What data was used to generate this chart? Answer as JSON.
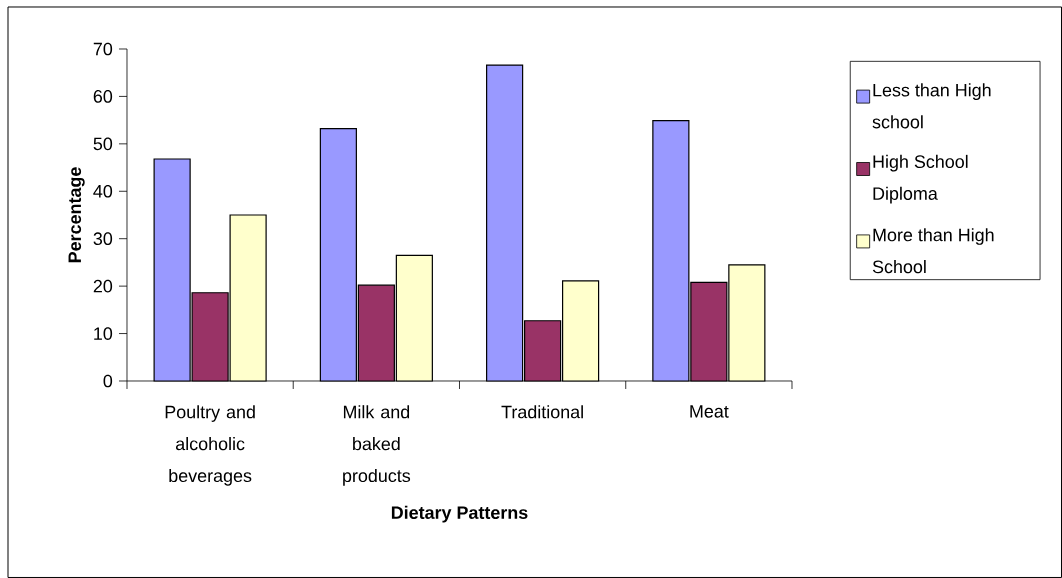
{
  "chart_data": {
    "type": "bar",
    "xlabel": "Dietary Patterns",
    "ylabel": "Percentage",
    "categories": [
      "Poultry and alcoholic beverages",
      "Milk and baked products",
      "Traditional",
      "Meat"
    ],
    "series": [
      {
        "name": "Less than High school",
        "color": "#9999ff",
        "values": [
          46.8,
          53.2,
          66.6,
          54.9
        ]
      },
      {
        "name": "High School Diploma",
        "color": "#993366",
        "values": [
          18.6,
          20.2,
          12.7,
          20.8
        ]
      },
      {
        "name": "More than High School",
        "color": "#ffffcc",
        "values": [
          35.0,
          26.5,
          21.1,
          24.5
        ]
      }
    ],
    "ylim": [
      0,
      70
    ],
    "yticks": [
      0,
      10,
      20,
      30,
      40,
      50,
      60,
      70
    ],
    "legend": "right"
  }
}
